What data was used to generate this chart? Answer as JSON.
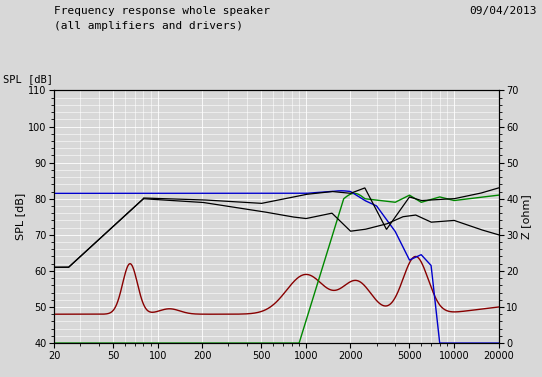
{
  "title_line1": "Frequency response whole speaker",
  "title_line2": "(all amplifiers and drivers)",
  "date_label": "09/04/2013",
  "ylabel_left": "SPL [dB]",
  "ylabel_right": "Z [ohm]",
  "ylim_left": [
    40,
    110
  ],
  "ylim_right": [
    0,
    70
  ],
  "xlim": [
    20,
    20000
  ],
  "yticks_left": [
    40,
    50,
    60,
    70,
    80,
    90,
    100,
    110
  ],
  "yticks_right": [
    0,
    10,
    20,
    30,
    40,
    50,
    60,
    70
  ],
  "xticks": [
    20,
    50,
    100,
    200,
    500,
    1000,
    2000,
    5000,
    10000,
    20000
  ],
  "xtick_labels": [
    "20",
    "50",
    "100",
    "200",
    "500",
    "1000",
    "2000",
    "5000",
    "10000",
    "20000"
  ],
  "bg_color": "#d8d8d8",
  "grid_color": "#ffffff",
  "color_black": "#000000",
  "color_red": "#880000",
  "color_green": "#008800",
  "color_blue": "#0000cc"
}
